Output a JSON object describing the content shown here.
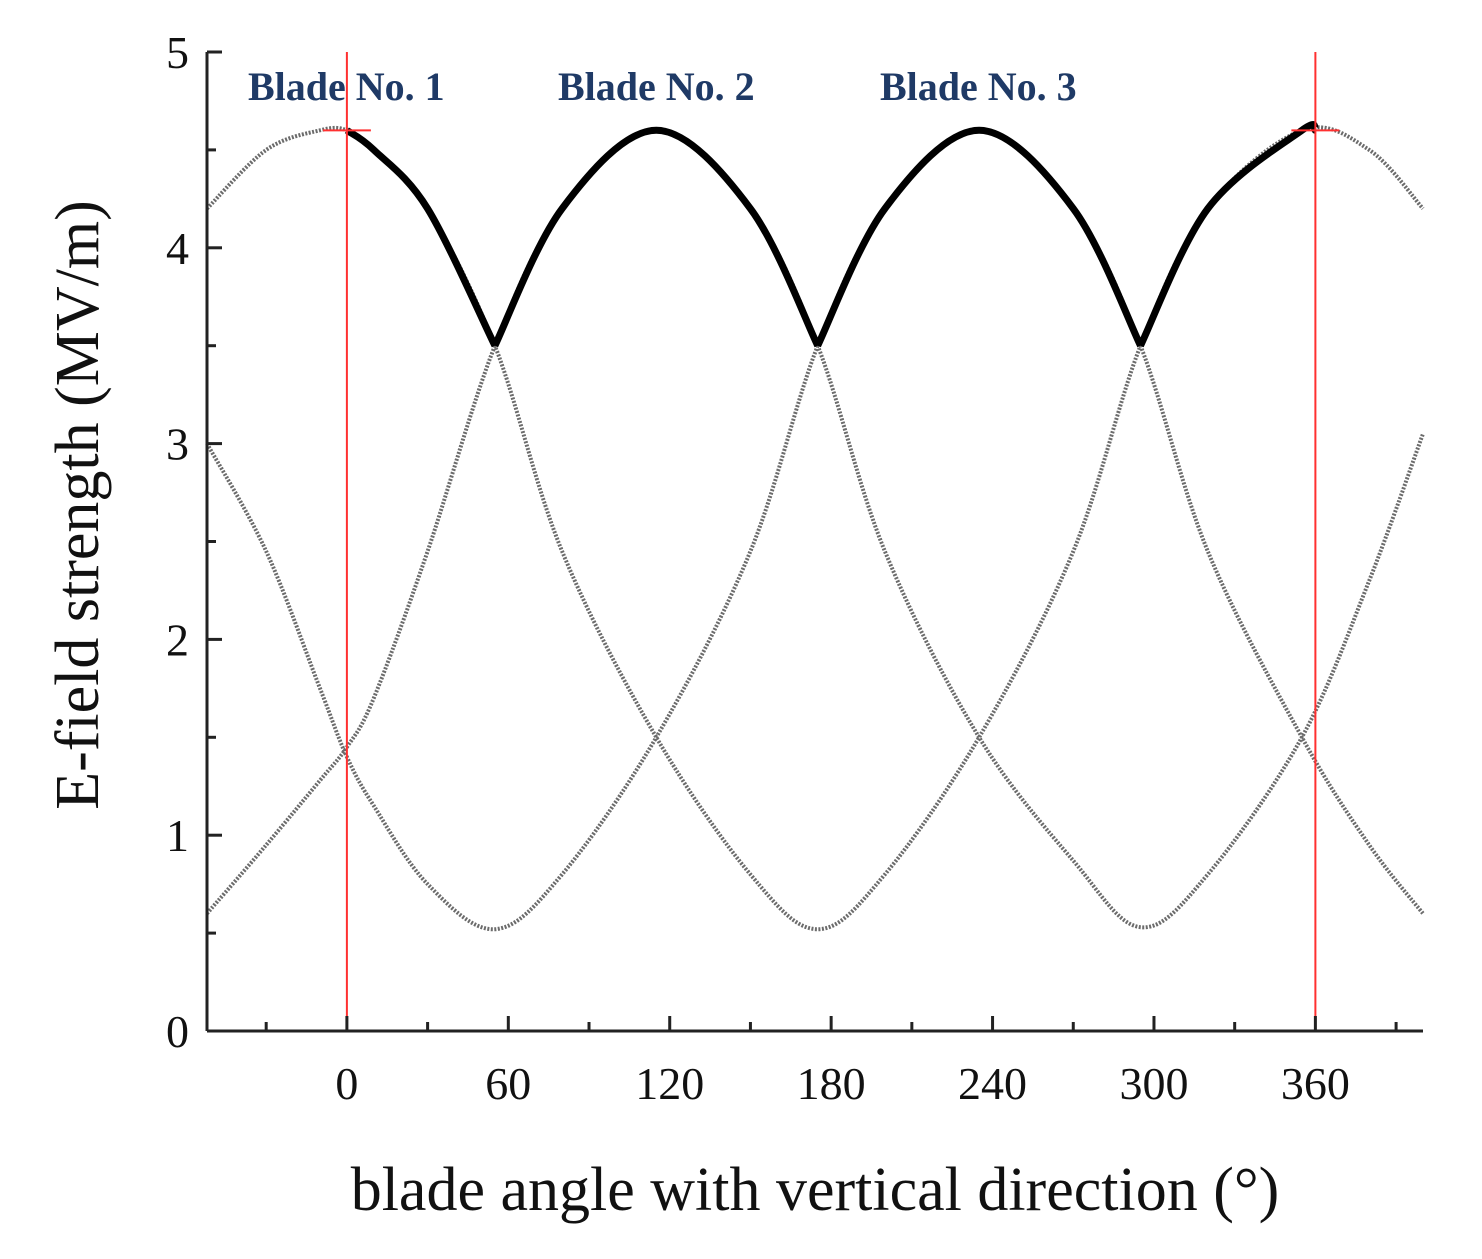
{
  "chart_data": {
    "type": "line",
    "title": "",
    "xlabel": "blade angle with vertical direction (°)",
    "ylabel": "E-field strength (MV/m)",
    "xlim": [
      -52,
      400
    ],
    "ylim": [
      0,
      5
    ],
    "x_ticks": [
      "0",
      "60",
      "120",
      "180",
      "240",
      "300",
      "360"
    ],
    "y_ticks": [
      "0",
      "1",
      "2",
      "3",
      "4",
      "5"
    ],
    "annotations": [
      "Blade No. 1",
      "Blade No. 2",
      "Blade No. 3"
    ],
    "reference_lines_x": [
      0,
      360
    ],
    "reference_lines_y": [
      4.6
    ],
    "grid": false,
    "series": [
      {
        "x": [
          -52,
          -30,
          -10,
          0,
          10,
          30,
          55,
          80,
          115,
          150,
          175,
          200,
          235,
          270,
          295,
          320,
          355,
          380,
          400
        ],
        "values": [
          0.6,
          0.95,
          1.28,
          1.45,
          1.7,
          2.45,
          3.5,
          4.2,
          4.6,
          4.2,
          3.5,
          2.45,
          1.5,
          0.87,
          0.53,
          0.8,
          1.5,
          2.3,
          3.05
        ]
      },
      {
        "x": [
          -52,
          -30,
          -10,
          0,
          10,
          30,
          55,
          80,
          115,
          150,
          175,
          200,
          235,
          270,
          295,
          320,
          355,
          380,
          400
        ],
        "values": [
          3.0,
          2.45,
          1.75,
          1.4,
          1.15,
          0.75,
          0.52,
          0.8,
          1.5,
          2.45,
          3.5,
          4.2,
          4.6,
          4.2,
          3.5,
          2.45,
          1.5,
          0.95,
          0.6
        ]
      },
      {
        "x": [
          -52,
          -30,
          -10,
          0,
          10,
          30,
          55,
          80,
          115,
          150,
          175,
          200,
          235,
          270,
          295,
          320,
          355,
          380,
          400
        ],
        "values": [
          4.2,
          4.5,
          4.6,
          4.6,
          4.5,
          4.2,
          3.5,
          2.45,
          1.5,
          0.8,
          0.52,
          0.8,
          1.5,
          2.45,
          3.5,
          4.2,
          4.6,
          4.5,
          4.2
        ]
      }
    ],
    "envelope": {
      "x": [
        0,
        10,
        30,
        55,
        80,
        115,
        150,
        175,
        200,
        235,
        270,
        295,
        320,
        355,
        360
      ],
      "values": [
        4.6,
        4.5,
        4.2,
        3.5,
        4.2,
        4.6,
        4.2,
        3.5,
        4.2,
        4.6,
        4.2,
        3.5,
        4.2,
        4.6,
        4.6
      ]
    },
    "colors": {
      "curve": "#6b6b6b",
      "envelope": "#000000",
      "reference": "#ff3030",
      "axis": "#222222",
      "blade_label": "#1f3a66"
    }
  }
}
